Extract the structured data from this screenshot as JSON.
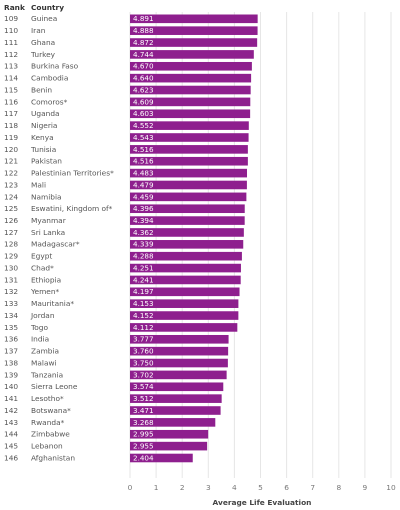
{
  "headers": {
    "rank": "Rank",
    "country": "Country"
  },
  "chart_data": {
    "type": "bar",
    "orientation": "horizontal",
    "xlabel": "Average Life Evaluation",
    "xlim": [
      0,
      10
    ],
    "xticks": [
      0,
      1,
      2,
      3,
      4,
      5,
      6,
      7,
      8,
      9,
      10
    ],
    "grid": true,
    "bar_color": "#8e1f8e",
    "rows": [
      {
        "rank": "109",
        "country": "Guinea",
        "value": 4.891
      },
      {
        "rank": "110",
        "country": "Iran",
        "value": 4.888
      },
      {
        "rank": "111",
        "country": "Ghana",
        "value": 4.872
      },
      {
        "rank": "112",
        "country": "Turkey",
        "value": 4.744
      },
      {
        "rank": "113",
        "country": "Burkina Faso",
        "value": 4.67
      },
      {
        "rank": "114",
        "country": "Cambodia",
        "value": 4.64
      },
      {
        "rank": "115",
        "country": "Benin",
        "value": 4.623
      },
      {
        "rank": "116",
        "country": "Comoros*",
        "value": 4.609
      },
      {
        "rank": "117",
        "country": "Uganda",
        "value": 4.603
      },
      {
        "rank": "118",
        "country": "Nigeria",
        "value": 4.552
      },
      {
        "rank": "119",
        "country": "Kenya",
        "value": 4.543
      },
      {
        "rank": "120",
        "country": "Tunisia",
        "value": 4.516
      },
      {
        "rank": "121",
        "country": "Pakistan",
        "value": 4.516
      },
      {
        "rank": "122",
        "country": "Palestinian Territories*",
        "value": 4.483
      },
      {
        "rank": "123",
        "country": "Mali",
        "value": 4.479
      },
      {
        "rank": "124",
        "country": "Namibia",
        "value": 4.459
      },
      {
        "rank": "125",
        "country": "Eswatini, Kingdom of*",
        "value": 4.396
      },
      {
        "rank": "126",
        "country": "Myanmar",
        "value": 4.394
      },
      {
        "rank": "127",
        "country": "Sri Lanka",
        "value": 4.362
      },
      {
        "rank": "128",
        "country": "Madagascar*",
        "value": 4.339
      },
      {
        "rank": "129",
        "country": "Egypt",
        "value": 4.288
      },
      {
        "rank": "130",
        "country": "Chad*",
        "value": 4.251
      },
      {
        "rank": "131",
        "country": "Ethiopia",
        "value": 4.241
      },
      {
        "rank": "132",
        "country": "Yemen*",
        "value": 4.197
      },
      {
        "rank": "133",
        "country": "Mauritania*",
        "value": 4.153
      },
      {
        "rank": "134",
        "country": "Jordan",
        "value": 4.152
      },
      {
        "rank": "135",
        "country": "Togo",
        "value": 4.112
      },
      {
        "rank": "136",
        "country": "India",
        "value": 3.777
      },
      {
        "rank": "137",
        "country": "Zambia",
        "value": 3.76
      },
      {
        "rank": "138",
        "country": "Malawi",
        "value": 3.75
      },
      {
        "rank": "139",
        "country": "Tanzania",
        "value": 3.702
      },
      {
        "rank": "140",
        "country": "Sierra Leone",
        "value": 3.574
      },
      {
        "rank": "141",
        "country": "Lesotho*",
        "value": 3.512
      },
      {
        "rank": "142",
        "country": "Botswana*",
        "value": 3.471
      },
      {
        "rank": "143",
        "country": "Rwanda*",
        "value": 3.268
      },
      {
        "rank": "144",
        "country": "Zimbabwe",
        "value": 2.995
      },
      {
        "rank": "145",
        "country": "Lebanon",
        "value": 2.955
      },
      {
        "rank": "146",
        "country": "Afghanistan",
        "value": 2.404
      }
    ]
  }
}
